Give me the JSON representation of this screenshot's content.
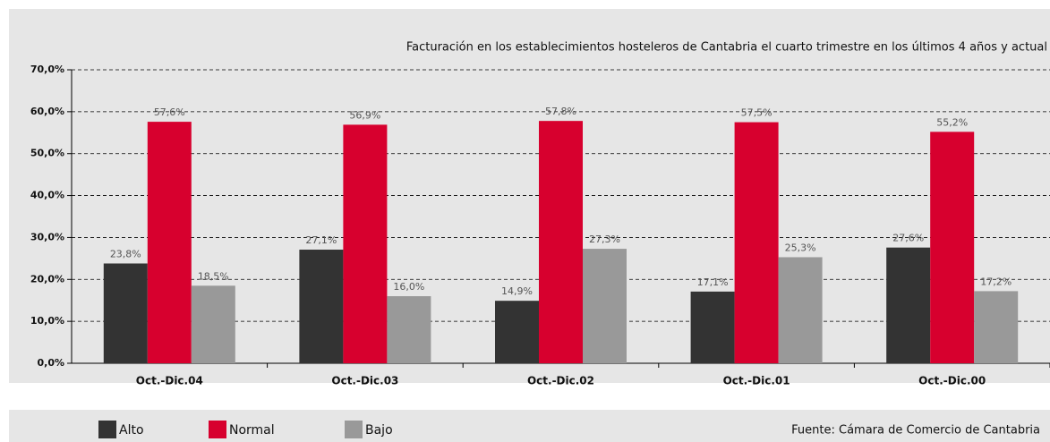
{
  "chart_data": {
    "type": "bar",
    "title": "Facturación en los establecimientos hosteleros de Cantabria el cuarto trimestre en los últimos 4 años y actual",
    "source": "Fuente: Cámara de Comercio de Cantabria",
    "categories": [
      "Oct.-Dic.04",
      "Oct.-Dic.03",
      "Oct.-Dic.02",
      "Oct.-Dic.01",
      "Oct.-Dic.00"
    ],
    "series": [
      {
        "name": "Alto",
        "color": "#333333",
        "values": [
          23.8,
          27.1,
          14.9,
          17.1,
          27.6
        ],
        "value_labels": [
          "23,8%",
          "27,1%",
          "14,9%",
          "17,1%",
          "27,6%"
        ]
      },
      {
        "name": "Normal",
        "color": "#d7002e",
        "values": [
          57.6,
          56.9,
          57.8,
          57.5,
          55.2
        ],
        "value_labels": [
          "57,6%",
          "56,9%",
          "57,8%",
          "57,5%",
          "55,2%"
        ]
      },
      {
        "name": "Bajo",
        "color": "#999999",
        "values": [
          18.5,
          16.0,
          27.3,
          25.3,
          17.2
        ],
        "value_labels": [
          "18,5%",
          "16,0%",
          "27,3%",
          "25,3%",
          "17,2%"
        ]
      }
    ],
    "ylim": [
      0,
      70
    ],
    "yticks": [
      {
        "value": 0,
        "label": "0,0%"
      },
      {
        "value": 10,
        "label": "10,0%"
      },
      {
        "value": 20,
        "label": "20,0%"
      },
      {
        "value": 30,
        "label": "30,0%"
      },
      {
        "value": 40,
        "label": "40,0%"
      },
      {
        "value": 50,
        "label": "50,0%"
      },
      {
        "value": 60,
        "label": "60,0%"
      },
      {
        "value": 70,
        "label": "70,0%"
      }
    ],
    "grid": true
  }
}
